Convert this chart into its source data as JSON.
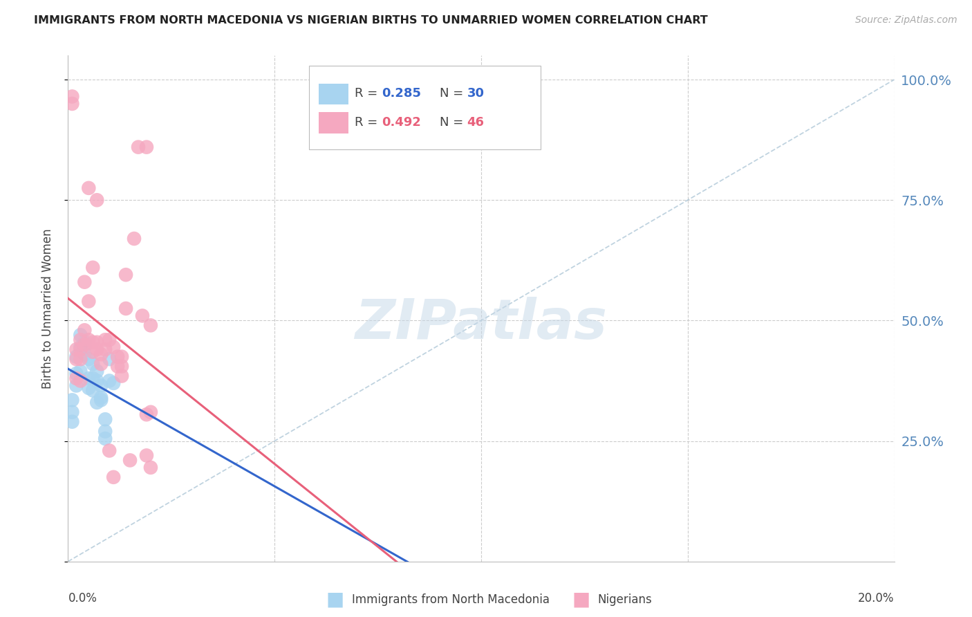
{
  "title": "IMMIGRANTS FROM NORTH MACEDONIA VS NIGERIAN BIRTHS TO UNMARRIED WOMEN CORRELATION CHART",
  "source": "Source: ZipAtlas.com",
  "ylabel": "Births to Unmarried Women",
  "legend_blue_r": "0.285",
  "legend_blue_n": "30",
  "legend_pink_r": "0.492",
  "legend_pink_n": "46",
  "blue_scatter_x": [
    0.001,
    0.002,
    0.003,
    0.004,
    0.005,
    0.006,
    0.007,
    0.008,
    0.009,
    0.01,
    0.001,
    0.002,
    0.003,
    0.004,
    0.005,
    0.006,
    0.007,
    0.008,
    0.009,
    0.01,
    0.001,
    0.002,
    0.003,
    0.004,
    0.005,
    0.006,
    0.007,
    0.008,
    0.009,
    0.011
  ],
  "blue_scatter_y": [
    0.335,
    0.425,
    0.47,
    0.455,
    0.42,
    0.41,
    0.395,
    0.365,
    0.295,
    0.375,
    0.31,
    0.39,
    0.445,
    0.43,
    0.38,
    0.38,
    0.33,
    0.34,
    0.27,
    0.42,
    0.29,
    0.365,
    0.395,
    0.445,
    0.36,
    0.355,
    0.375,
    0.335,
    0.255,
    0.37
  ],
  "pink_scatter_x": [
    0.001,
    0.001,
    0.002,
    0.002,
    0.002,
    0.003,
    0.003,
    0.003,
    0.003,
    0.004,
    0.004,
    0.004,
    0.005,
    0.005,
    0.005,
    0.006,
    0.006,
    0.006,
    0.007,
    0.007,
    0.007,
    0.008,
    0.008,
    0.009,
    0.009,
    0.01,
    0.01,
    0.011,
    0.011,
    0.012,
    0.012,
    0.013,
    0.013,
    0.013,
    0.014,
    0.014,
    0.015,
    0.016,
    0.017,
    0.018,
    0.019,
    0.019,
    0.019,
    0.02,
    0.02,
    0.02
  ],
  "pink_scatter_y": [
    0.965,
    0.95,
    0.44,
    0.42,
    0.38,
    0.46,
    0.44,
    0.42,
    0.375,
    0.58,
    0.48,
    0.45,
    0.775,
    0.54,
    0.46,
    0.61,
    0.455,
    0.435,
    0.75,
    0.455,
    0.44,
    0.43,
    0.41,
    0.46,
    0.44,
    0.46,
    0.23,
    0.445,
    0.175,
    0.425,
    0.405,
    0.425,
    0.405,
    0.385,
    0.595,
    0.525,
    0.21,
    0.67,
    0.86,
    0.51,
    0.305,
    0.22,
    0.86,
    0.49,
    0.31,
    0.195
  ],
  "blue_color": "#A8D4F0",
  "pink_color": "#F5A8C0",
  "blue_line_color": "#3366CC",
  "pink_line_color": "#E8607A",
  "diagonal_color": "#B0C8D8",
  "background_color": "#FFFFFF",
  "grid_color": "#CCCCCC",
  "right_axis_color": "#5588BB",
  "watermark": "ZIPatlas",
  "watermark_color": "#C5D8E8",
  "xlim": [
    0.0,
    0.2
  ],
  "ylim": [
    0.0,
    1.05
  ]
}
